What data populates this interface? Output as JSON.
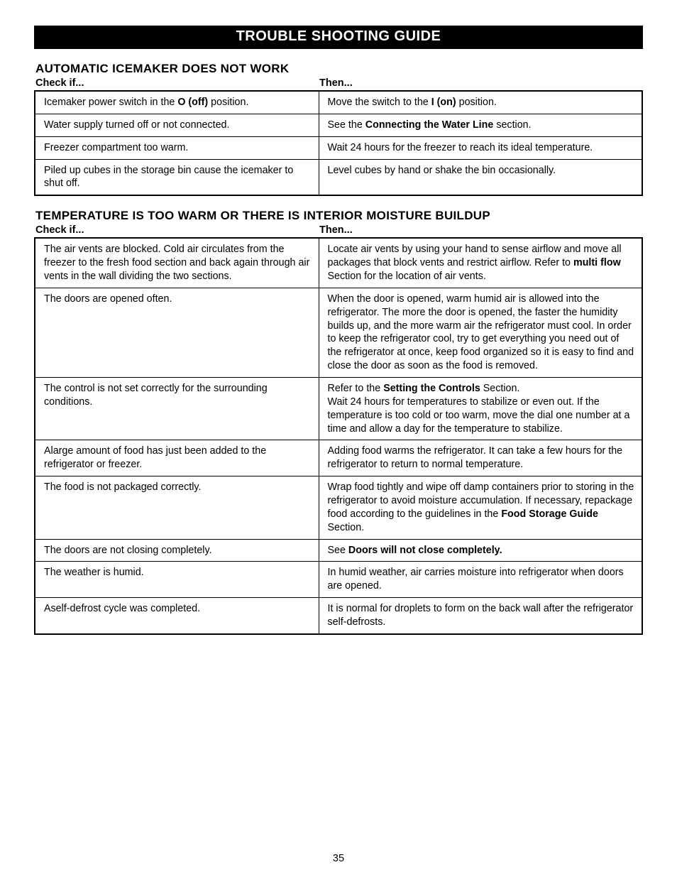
{
  "page_title": "TROUBLE SHOOTING GUIDE",
  "page_number": "35",
  "col_label_check": "Check if...",
  "col_label_then": "Then...",
  "sections": [
    {
      "heading": "AUTOMATIC ICEMAKER DOES NOT WORK",
      "rows": [
        {
          "check_parts": [
            {
              "t": "Icemaker power switch in the ",
              "b": false
            },
            {
              "t": "O (off)",
              "b": true
            },
            {
              "t": " position.",
              "b": false
            }
          ],
          "then_parts": [
            {
              "t": "Move the switch to the ",
              "b": false
            },
            {
              "t": "I (on)",
              "b": true
            },
            {
              "t": " position.",
              "b": false
            }
          ]
        },
        {
          "check_parts": [
            {
              "t": "Water supply turned off or not connected.",
              "b": false
            }
          ],
          "then_parts": [
            {
              "t": "See the ",
              "b": false
            },
            {
              "t": "Connecting the Water Line",
              "b": true
            },
            {
              "t": " section.",
              "b": false
            }
          ]
        },
        {
          "check_parts": [
            {
              "t": "Freezer compartment too warm.",
              "b": false
            }
          ],
          "then_parts": [
            {
              "t": "Wait 24 hours for the freezer to reach its ideal temperature.",
              "b": false
            }
          ]
        },
        {
          "check_parts": [
            {
              "t": "Piled up cubes in the storage bin cause the icemaker to shut off.",
              "b": false
            }
          ],
          "then_parts": [
            {
              "t": "Level cubes by hand or shake the bin occasionally.",
              "b": false
            }
          ]
        }
      ]
    },
    {
      "heading": "TEMPERATURE IS TOO WARM OR THERE IS INTERIOR MOISTURE BUILDUP",
      "rows": [
        {
          "check_parts": [
            {
              "t": "The air vents are blocked. Cold air circulates from the freezer to the fresh food section and back again through air vents in the wall dividing the two sections.",
              "b": false
            }
          ],
          "then_parts": [
            {
              "t": "Locate air vents by using your hand to sense airflow and move all packages that block vents and restrict airflow. Refer to ",
              "b": false
            },
            {
              "t": "multi flow",
              "b": true
            },
            {
              "t": " Section for the location of air vents.",
              "b": false
            }
          ]
        },
        {
          "check_parts": [
            {
              "t": "The doors are opened often.",
              "b": false
            }
          ],
          "then_parts": [
            {
              "t": "When the door is opened, warm humid air is allowed into the refrigerator. The more the door is opened, the faster the humidity builds up, and the more warm air the refrigerator must cool. In order to keep the refrigerator cool, try to get everything you need out of the refrigerator at once, keep food organized so it is easy to find and close the door as soon as the food is removed.",
              "b": false
            }
          ]
        },
        {
          "check_parts": [
            {
              "t": "The control is not set correctly for the surrounding conditions.",
              "b": false
            }
          ],
          "then_parts": [
            {
              "t": "Refer to the ",
              "b": false
            },
            {
              "t": "Setting the Controls",
              "b": true
            },
            {
              "t": " Section.\nWait 24 hours for temperatures to stabilize or even out. If the temperature is too cold or too warm, move the dial one number at a time and allow a day for the temperature to stabilize.",
              "b": false
            }
          ]
        },
        {
          "check_parts": [
            {
              "t": "Alarge amount of food has just been added to the refrigerator or freezer.",
              "b": false
            }
          ],
          "then_parts": [
            {
              "t": "Adding food warms the refrigerator. It can take a few hours for the refrigerator to return to normal temperature.",
              "b": false
            }
          ]
        },
        {
          "check_parts": [
            {
              "t": "The food is not packaged correctly.",
              "b": false
            }
          ],
          "then_parts": [
            {
              "t": "Wrap food tightly and wipe off damp containers prior to storing in the refrigerator to avoid moisture accumulation. If necessary, repackage food according to the guidelines in the ",
              "b": false
            },
            {
              "t": "Food Storage Guide",
              "b": true
            },
            {
              "t": " Section.",
              "b": false
            }
          ]
        },
        {
          "check_parts": [
            {
              "t": "The doors are not closing completely.",
              "b": false
            }
          ],
          "then_parts": [
            {
              "t": "See ",
              "b": false
            },
            {
              "t": "Doors will not close completely.",
              "b": true
            }
          ]
        },
        {
          "check_parts": [
            {
              "t": "The weather is humid.",
              "b": false
            }
          ],
          "then_parts": [
            {
              "t": "In humid weather, air carries moisture into refrigerator when doors are opened.",
              "b": false
            }
          ]
        },
        {
          "check_parts": [
            {
              "t": "Aself-defrost cycle was completed.",
              "b": false
            }
          ],
          "then_parts": [
            {
              "t": "It is normal for droplets to form on the back wall after the refrigerator self-defrosts.",
              "b": false
            }
          ]
        }
      ]
    }
  ]
}
